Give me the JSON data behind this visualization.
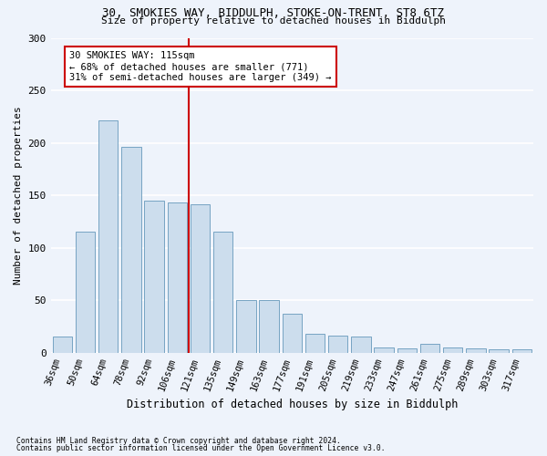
{
  "title1": "30, SMOKIES WAY, BIDDULPH, STOKE-ON-TRENT, ST8 6TZ",
  "title2": "Size of property relative to detached houses in Biddulph",
  "xlabel": "Distribution of detached houses by size in Biddulph",
  "ylabel": "Number of detached properties",
  "categories": [
    "36sqm",
    "50sqm",
    "64sqm",
    "78sqm",
    "92sqm",
    "106sqm",
    "121sqm",
    "135sqm",
    "149sqm",
    "163sqm",
    "177sqm",
    "191sqm",
    "205sqm",
    "219sqm",
    "233sqm",
    "247sqm",
    "261sqm",
    "275sqm",
    "289sqm",
    "303sqm",
    "317sqm"
  ],
  "values": [
    15,
    115,
    221,
    196,
    145,
    143,
    141,
    115,
    50,
    50,
    37,
    18,
    16,
    15,
    5,
    4,
    8,
    5,
    4,
    3,
    3
  ],
  "bar_color": "#ccdded",
  "bar_edge_color": "#6699bb",
  "vline_color": "#cc0000",
  "vline_x_index": 6,
  "annotation_line1": "30 SMOKIES WAY: 115sqm",
  "annotation_line2": "← 68% of detached houses are smaller (771)",
  "annotation_line3": "31% of semi-detached houses are larger (349) →",
  "ylim": [
    0,
    300
  ],
  "yticks": [
    0,
    50,
    100,
    150,
    200,
    250,
    300
  ],
  "footnote1": "Contains HM Land Registry data © Crown copyright and database right 2024.",
  "footnote2": "Contains public sector information licensed under the Open Government Licence v3.0.",
  "background_color": "#eef3fb",
  "plot_bg_color": "#eef3fb"
}
